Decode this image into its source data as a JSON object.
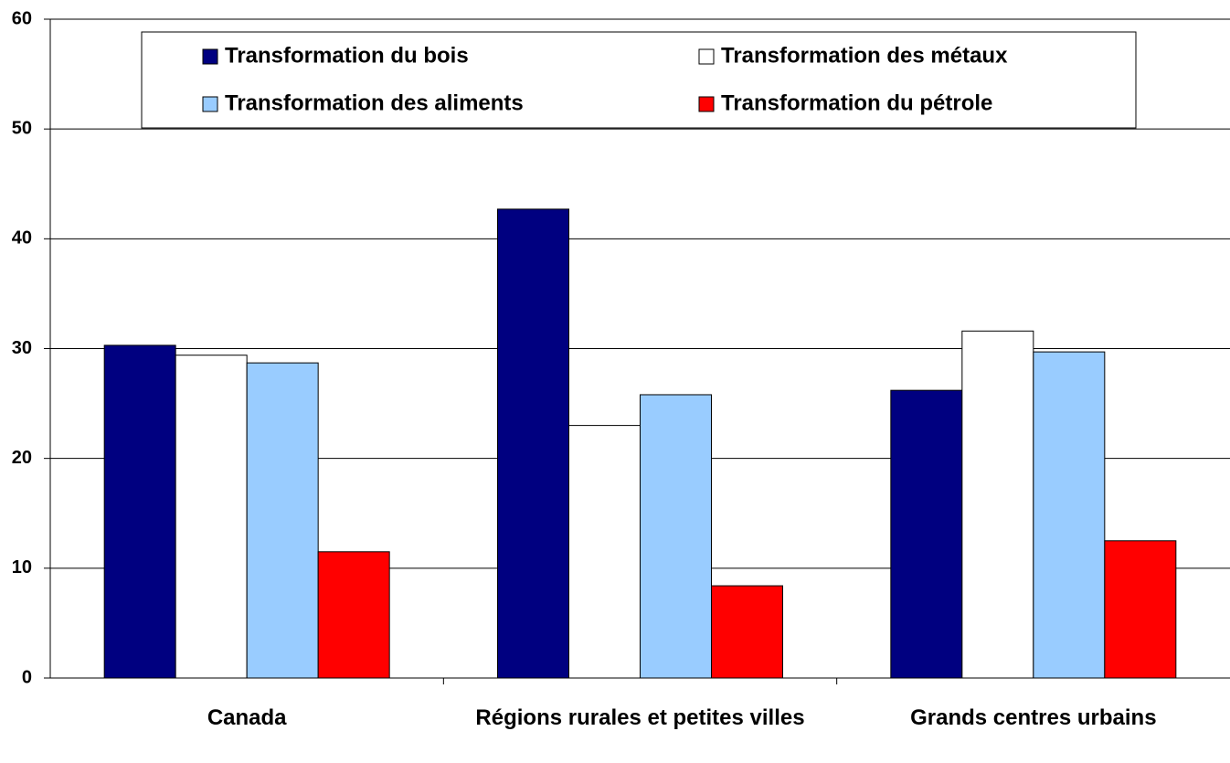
{
  "chart_data": {
    "type": "bar",
    "categories": [
      "Canada",
      "Régions rurales et petites villes",
      "Grands centres urbains"
    ],
    "series": [
      {
        "name": "Transformation du bois",
        "color": "#000080",
        "values": [
          30.3,
          42.7,
          26.2
        ]
      },
      {
        "name": "Transformation des métaux",
        "color": "#ffffff",
        "values": [
          29.4,
          23.0,
          31.6
        ]
      },
      {
        "name": "Transformation des aliments",
        "color": "#99ccff",
        "values": [
          28.7,
          25.8,
          29.7
        ]
      },
      {
        "name": "Transformation du pétrole",
        "color": "#ff0000",
        "values": [
          11.5,
          8.4,
          12.5
        ]
      }
    ],
    "ylim": [
      0,
      60
    ],
    "yticks": [
      0,
      10,
      20,
      30,
      40,
      50,
      60
    ],
    "grid": true,
    "legend": "top"
  }
}
